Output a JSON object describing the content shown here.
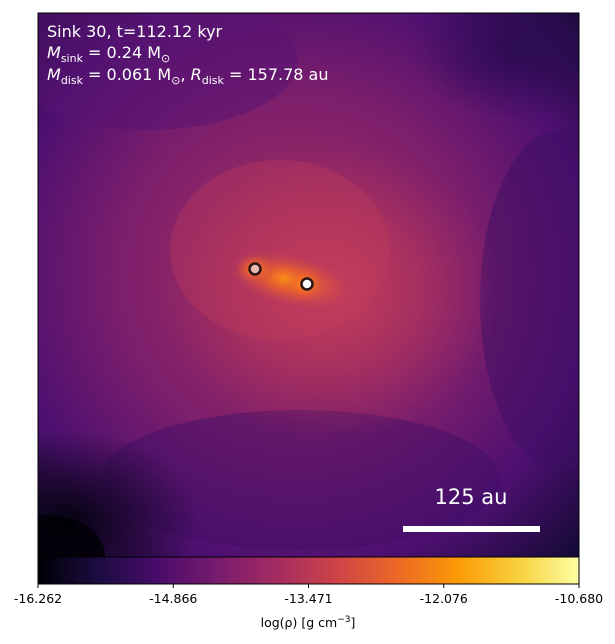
{
  "annotation": {
    "line1": "Sink 30, t=112.12 kyr",
    "line2_sym": "M",
    "line2_sub": "sink",
    "line2_rest": " = 0.24 M",
    "line2_sun": "⊙",
    "line3_sym": "M",
    "line3_sub": "disk",
    "line3_mid": " = 0.061 M",
    "line3_sun": "⊙",
    "line3_sep": ", ",
    "line3_rsym": "R",
    "line3_rsub": "disk",
    "line3_rest": " = 157.78 au"
  },
  "scale_bar": {
    "label": "125 au",
    "length_au": 125
  },
  "sinks": [
    {
      "name": "sink-left",
      "fill": "#e9b8b2"
    },
    {
      "name": "sink-right",
      "fill": "#ffffff"
    }
  ],
  "colorbar": {
    "ticks": [
      "-16.262",
      "-14.866",
      "-13.471",
      "-12.076",
      "-10.680"
    ],
    "label_main": "log(ρ) [g cm",
    "label_sup": "−3",
    "label_end": "]",
    "colormap": [
      "#000004",
      "#1b0c41",
      "#4a0c6b",
      "#781c6d",
      "#a52c60",
      "#cf4446",
      "#ed6925",
      "#fb9b06",
      "#f7d13d",
      "#fcffa4"
    ]
  }
}
